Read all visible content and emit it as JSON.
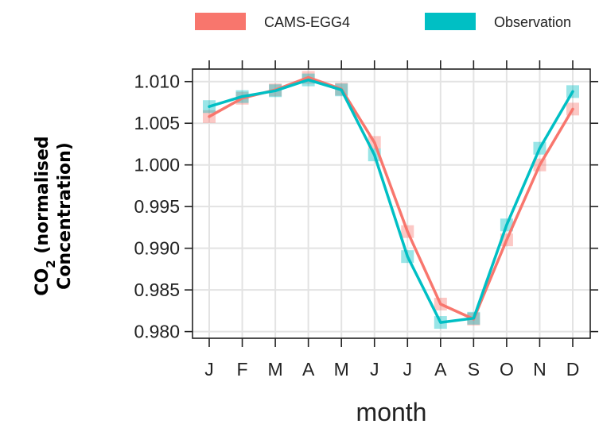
{
  "chart_data": {
    "type": "line",
    "categories": [
      "J",
      "F",
      "M",
      "A",
      "M",
      "J",
      "J",
      "A",
      "S",
      "O",
      "N",
      "D"
    ],
    "series": [
      {
        "name": "CAMS-EGG4",
        "color": "#F8766D",
        "values": [
          1.0058,
          1.008,
          1.009,
          1.0105,
          1.0091,
          1.0027,
          0.992,
          0.9833,
          0.9815,
          0.991,
          1.0,
          1.0067
        ]
      },
      {
        "name": "Observation",
        "color": "#00BFC4",
        "values": [
          1.007,
          1.0082,
          1.0089,
          1.0102,
          1.009,
          1.0012,
          0.989,
          0.9811,
          0.9816,
          0.9928,
          1.002,
          1.0088
        ]
      }
    ],
    "xlabel": "month",
    "ylabel_line1": "CO",
    "ylabel_sub": "2",
    "ylabel_line1_rest": " (normalised",
    "ylabel_line2": "Concentration)",
    "ylim": [
      0.9792,
      1.0115
    ],
    "yticks": [
      "0.980",
      "0.985",
      "0.990",
      "0.995",
      "1.000",
      "1.005",
      "1.010"
    ],
    "ytick_values": [
      0.98,
      0.985,
      0.99,
      0.995,
      1.0,
      1.005,
      1.01
    ],
    "grid": true,
    "legend_position": "top"
  }
}
